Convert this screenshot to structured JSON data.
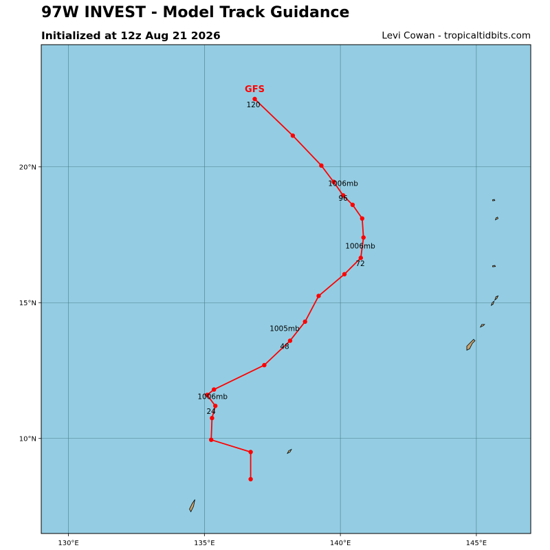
{
  "header": {
    "title": "97W INVEST - Model Track Guidance",
    "subtitle": "Initialized at 12z Aug 21 2026",
    "credit": "Levi Cowan - tropicaltidbits.com"
  },
  "colors": {
    "ocean": "#94cde3",
    "land": "#c8a36c",
    "grid": "#4a7a8a",
    "track": "#ff0000"
  },
  "map": {
    "lon_range": [
      129,
      147
    ],
    "lat_range": [
      6.5,
      24.5
    ],
    "lon_ticks": [
      {
        "value": 130,
        "label": "130°E"
      },
      {
        "value": 135,
        "label": "135°E"
      },
      {
        "value": 140,
        "label": "140°E"
      },
      {
        "value": 145,
        "label": "145°E"
      }
    ],
    "lat_ticks": [
      {
        "value": 10,
        "label": "10°N"
      },
      {
        "value": 15,
        "label": "15°N"
      },
      {
        "value": 20,
        "label": "20°N"
      }
    ]
  },
  "track": {
    "model": "GFS",
    "points": [
      [
        136.7,
        8.5
      ],
      [
        136.7,
        9.5
      ],
      [
        135.25,
        9.95
      ],
      [
        135.28,
        10.75
      ],
      [
        135.4,
        11.2
      ],
      [
        135.1,
        11.6
      ],
      [
        135.35,
        11.8
      ],
      [
        137.2,
        12.7
      ],
      [
        138.15,
        13.6
      ],
      [
        138.7,
        14.3
      ],
      [
        139.2,
        15.25
      ],
      [
        140.15,
        16.05
      ],
      [
        140.75,
        16.65
      ],
      [
        140.85,
        17.4
      ],
      [
        140.8,
        18.1
      ],
      [
        140.45,
        18.6
      ],
      [
        140.1,
        18.95
      ],
      [
        139.75,
        19.45
      ],
      [
        139.3,
        20.05
      ],
      [
        138.25,
        21.15
      ],
      [
        136.85,
        22.5
      ]
    ],
    "labels": [
      {
        "text": "24",
        "lon": 135.25,
        "lat": 10.9
      },
      {
        "text": "1006mb",
        "lon": 135.3,
        "lat": 11.45
      },
      {
        "text": "48",
        "lon": 137.95,
        "lat": 13.3
      },
      {
        "text": "1005mb",
        "lon": 137.95,
        "lat": 13.95
      },
      {
        "text": "72",
        "lon": 140.73,
        "lat": 16.35
      },
      {
        "text": "1006mb",
        "lon": 140.73,
        "lat": 17.0
      },
      {
        "text": "96",
        "lon": 140.1,
        "lat": 18.75
      },
      {
        "text": "1006mb",
        "lon": 140.1,
        "lat": 19.3
      },
      {
        "text": "120",
        "lon": 136.8,
        "lat": 22.2
      }
    ]
  },
  "islands": [
    {
      "name": "palau",
      "pts": [
        [
          134.5,
          7.3
        ],
        [
          134.6,
          7.5
        ],
        [
          134.65,
          7.75
        ],
        [
          134.55,
          7.6
        ],
        [
          134.45,
          7.4
        ]
      ]
    },
    {
      "name": "yap",
      "pts": [
        [
          138.05,
          9.45
        ],
        [
          138.15,
          9.5
        ],
        [
          138.2,
          9.6
        ],
        [
          138.1,
          9.55
        ]
      ]
    },
    {
      "name": "guam",
      "pts": [
        [
          144.65,
          13.25
        ],
        [
          144.75,
          13.3
        ],
        [
          144.85,
          13.5
        ],
        [
          144.95,
          13.6
        ],
        [
          144.9,
          13.65
        ],
        [
          144.75,
          13.5
        ],
        [
          144.65,
          13.4
        ]
      ]
    },
    {
      "name": "rota",
      "pts": [
        [
          145.15,
          14.1
        ],
        [
          145.25,
          14.15
        ],
        [
          145.3,
          14.2
        ],
        [
          145.2,
          14.2
        ]
      ]
    },
    {
      "name": "tinian",
      "pts": [
        [
          145.55,
          14.9
        ],
        [
          145.62,
          14.95
        ],
        [
          145.65,
          15.05
        ],
        [
          145.58,
          15.0
        ]
      ]
    },
    {
      "name": "saipan",
      "pts": [
        [
          145.68,
          15.1
        ],
        [
          145.75,
          15.15
        ],
        [
          145.8,
          15.25
        ],
        [
          145.72,
          15.22
        ]
      ]
    },
    {
      "name": "anatahan",
      "pts": [
        [
          145.6,
          16.32
        ],
        [
          145.7,
          16.33
        ],
        [
          145.68,
          16.37
        ],
        [
          145.6,
          16.36
        ]
      ]
    },
    {
      "name": "pagan",
      "pts": [
        [
          145.7,
          18.05
        ],
        [
          145.8,
          18.1
        ],
        [
          145.78,
          18.15
        ],
        [
          145.72,
          18.12
        ]
      ]
    },
    {
      "name": "agrihan",
      "pts": [
        [
          145.6,
          18.75
        ],
        [
          145.68,
          18.76
        ],
        [
          145.66,
          18.8
        ],
        [
          145.6,
          18.79
        ]
      ]
    }
  ]
}
